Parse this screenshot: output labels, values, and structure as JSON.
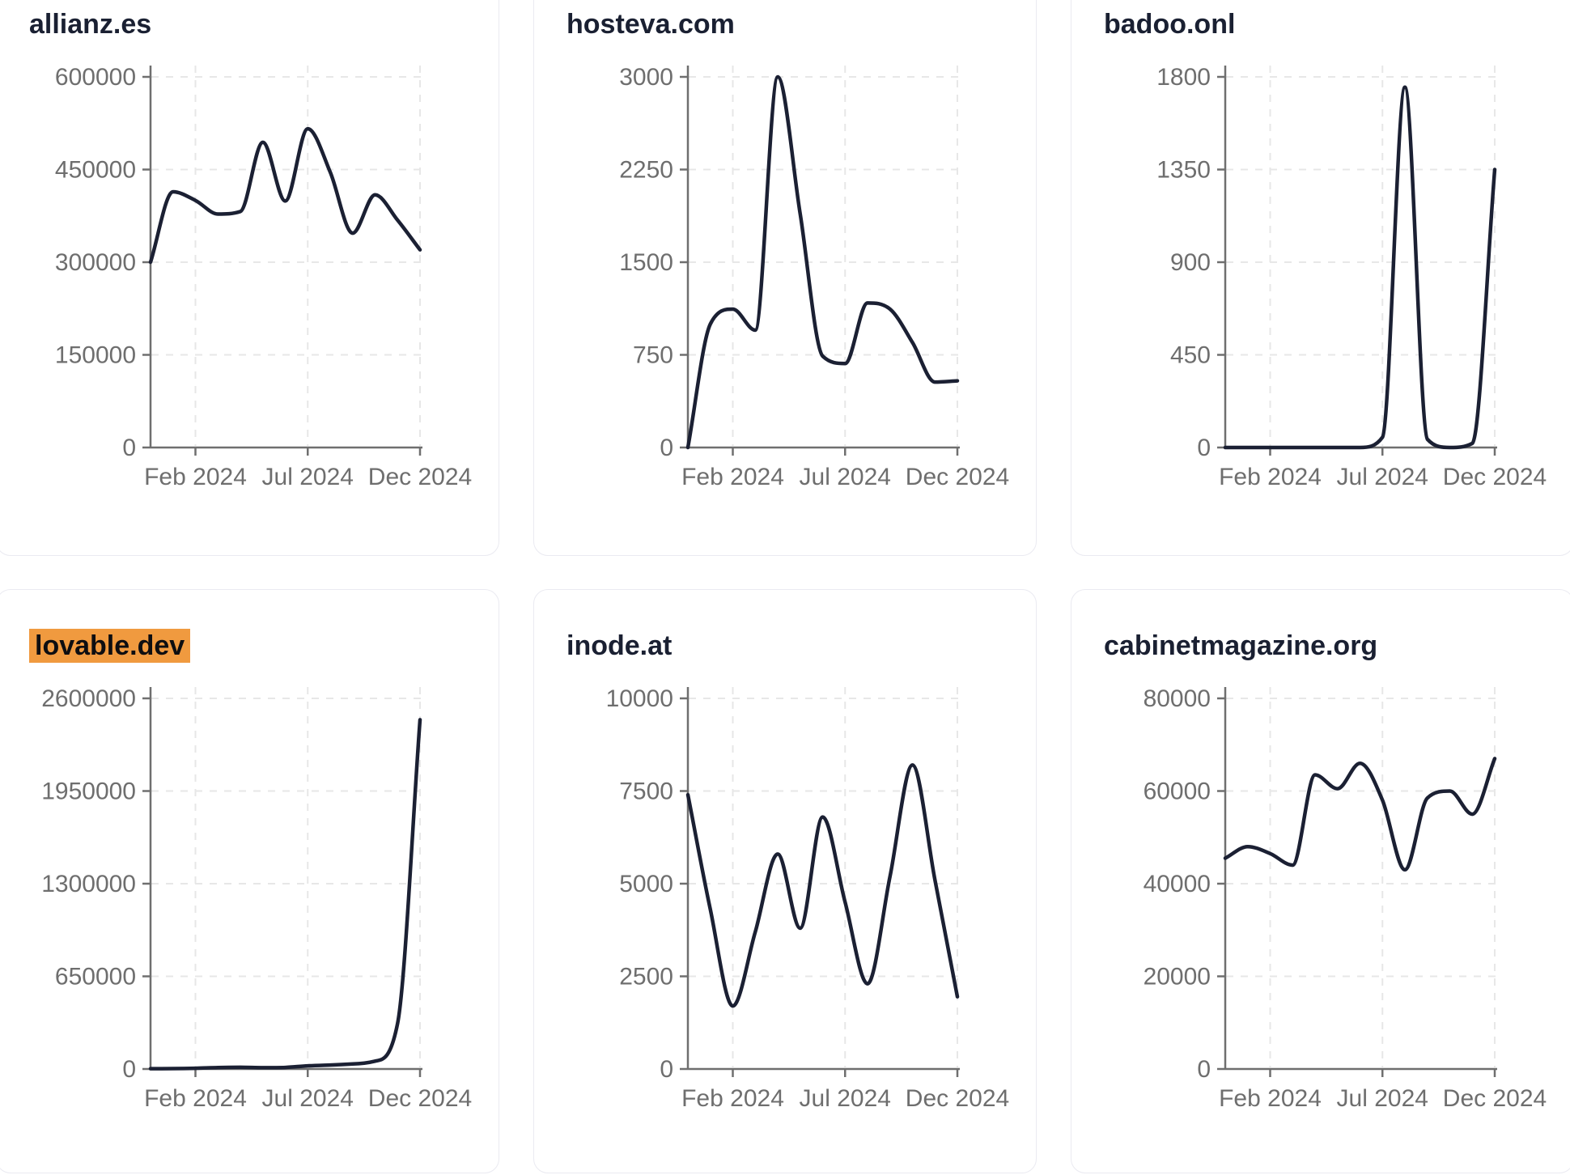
{
  "colors": {
    "line": "#1b2033",
    "axis": "#6f6f6f",
    "grid": "#e7e7e7",
    "tick_label": "#6e6e6e",
    "title": "#1a2032",
    "highlight_bg": "#f09a3f",
    "highlight_text": "#0e0e11",
    "card_border": "#eaeaf1",
    "background": "#ffffff"
  },
  "chart_data": [
    {
      "type": "line",
      "title": "allianz.es",
      "title_highlighted": false,
      "months": [
        "Dec 2023",
        "Jan 2024",
        "Feb 2024",
        "Mar 2024",
        "Apr 2024",
        "May 2024",
        "Jun 2024",
        "Jul 2024",
        "Aug 2024",
        "Sep 2024",
        "Oct 2024",
        "Nov 2024",
        "Dec 2024"
      ],
      "values": [
        300000,
        414000,
        400000,
        378000,
        382000,
        494000,
        399000,
        516000,
        446000,
        347000,
        409000,
        368000,
        320000
      ],
      "y_ticks": [
        0,
        150000,
        300000,
        450000,
        600000
      ],
      "y_tick_labels": [
        "0",
        "150000",
        "300000",
        "450000",
        "600000"
      ],
      "ylim": [
        0,
        600000
      ],
      "x_tick_labels": [
        "Feb 2024",
        "Jul 2024",
        "Dec 2024"
      ],
      "x_tick_months": [
        2,
        7,
        12
      ],
      "grid": "dashed"
    },
    {
      "type": "line",
      "title": "hosteva.com",
      "title_highlighted": false,
      "months": [
        "Dec 2023",
        "Jan 2024",
        "Feb 2024",
        "Mar 2024",
        "Apr 2024",
        "May 2024",
        "Jun 2024",
        "Jul 2024",
        "Aug 2024",
        "Sep 2024",
        "Oct 2024",
        "Nov 2024",
        "Dec 2024"
      ],
      "values": [
        0,
        1000,
        1120,
        950,
        3000,
        1890,
        740,
        680,
        1170,
        1120,
        850,
        530,
        540
      ],
      "y_ticks": [
        0,
        750,
        1500,
        2250,
        3000
      ],
      "y_tick_labels": [
        "0",
        "750",
        "1500",
        "2250",
        "3000"
      ],
      "ylim": [
        0,
        3000
      ],
      "x_tick_labels": [
        "Feb 2024",
        "Jul 2024",
        "Dec 2024"
      ],
      "x_tick_months": [
        2,
        7,
        12
      ],
      "grid": "dashed"
    },
    {
      "type": "line",
      "title": "badoo.onl",
      "title_highlighted": false,
      "months": [
        "Dec 2023",
        "Jan 2024",
        "Feb 2024",
        "Mar 2024",
        "Apr 2024",
        "May 2024",
        "Jun 2024",
        "Jul 2024",
        "Aug 2024",
        "Sep 2024",
        "Oct 2024",
        "Nov 2024",
        "Dec 2024"
      ],
      "values": [
        0,
        0,
        0,
        0,
        0,
        0,
        0,
        50,
        1750,
        40,
        0,
        20,
        1350
      ],
      "y_ticks": [
        0,
        450,
        900,
        1350,
        1800
      ],
      "y_tick_labels": [
        "0",
        "450",
        "900",
        "1350",
        "1800"
      ],
      "ylim": [
        0,
        1800
      ],
      "x_tick_labels": [
        "Feb 2024",
        "Jul 2024",
        "Dec 2024"
      ],
      "x_tick_months": [
        2,
        7,
        12
      ],
      "grid": "dashed"
    },
    {
      "type": "line",
      "title": "lovable.dev",
      "title_highlighted": true,
      "months": [
        "Dec 2023",
        "Jan 2024",
        "Feb 2024",
        "Mar 2024",
        "Apr 2024",
        "May 2024",
        "Jun 2024",
        "Jul 2024",
        "Aug 2024",
        "Sep 2024",
        "Oct 2024",
        "Nov 2024",
        "Dec 2024"
      ],
      "values": [
        2000,
        3000,
        5000,
        10000,
        12000,
        9000,
        11000,
        22000,
        28000,
        35000,
        55000,
        320000,
        2450000
      ],
      "y_ticks": [
        0,
        650000,
        1300000,
        1950000,
        2600000
      ],
      "y_tick_labels": [
        "0",
        "650000",
        "1300000",
        "1950000",
        "2600000"
      ],
      "ylim": [
        0,
        2600000
      ],
      "x_tick_labels": [
        "Feb 2024",
        "Jul 2024",
        "Dec 2024"
      ],
      "x_tick_months": [
        2,
        7,
        12
      ],
      "grid": "dashed"
    },
    {
      "type": "line",
      "title": "inode.at",
      "title_highlighted": false,
      "months": [
        "Dec 2023",
        "Jan 2024",
        "Feb 2024",
        "Mar 2024",
        "Apr 2024",
        "May 2024",
        "Jun 2024",
        "Jul 2024",
        "Aug 2024",
        "Sep 2024",
        "Oct 2024",
        "Nov 2024",
        "Dec 2024"
      ],
      "values": [
        7400,
        4300,
        1700,
        3700,
        5800,
        3800,
        6800,
        4500,
        2300,
        5200,
        8200,
        5100,
        1950
      ],
      "y_ticks": [
        0,
        2500,
        5000,
        7500,
        10000
      ],
      "y_tick_labels": [
        "0",
        "2500",
        "5000",
        "7500",
        "10000"
      ],
      "ylim": [
        0,
        10000
      ],
      "x_tick_labels": [
        "Feb 2024",
        "Jul 2024",
        "Dec 2024"
      ],
      "x_tick_months": [
        2,
        7,
        12
      ],
      "grid": "dashed"
    },
    {
      "type": "line",
      "title": "cabinetmagazine.org",
      "title_highlighted": false,
      "months": [
        "Dec 2023",
        "Jan 2024",
        "Feb 2024",
        "Mar 2024",
        "Apr 2024",
        "May 2024",
        "Jun 2024",
        "Jul 2024",
        "Aug 2024",
        "Sep 2024",
        "Oct 2024",
        "Nov 2024",
        "Dec 2024"
      ],
      "values": [
        45500,
        48000,
        46500,
        44000,
        63500,
        60500,
        66000,
        58000,
        43000,
        58500,
        60000,
        55000,
        67000
      ],
      "y_ticks": [
        0,
        20000,
        40000,
        60000,
        80000
      ],
      "y_tick_labels": [
        "0",
        "20000",
        "40000",
        "60000",
        "80000"
      ],
      "ylim": [
        0,
        80000
      ],
      "x_tick_labels": [
        "Feb 2024",
        "Jul 2024",
        "Dec 2024"
      ],
      "x_tick_months": [
        2,
        7,
        12
      ],
      "grid": "dashed"
    }
  ]
}
